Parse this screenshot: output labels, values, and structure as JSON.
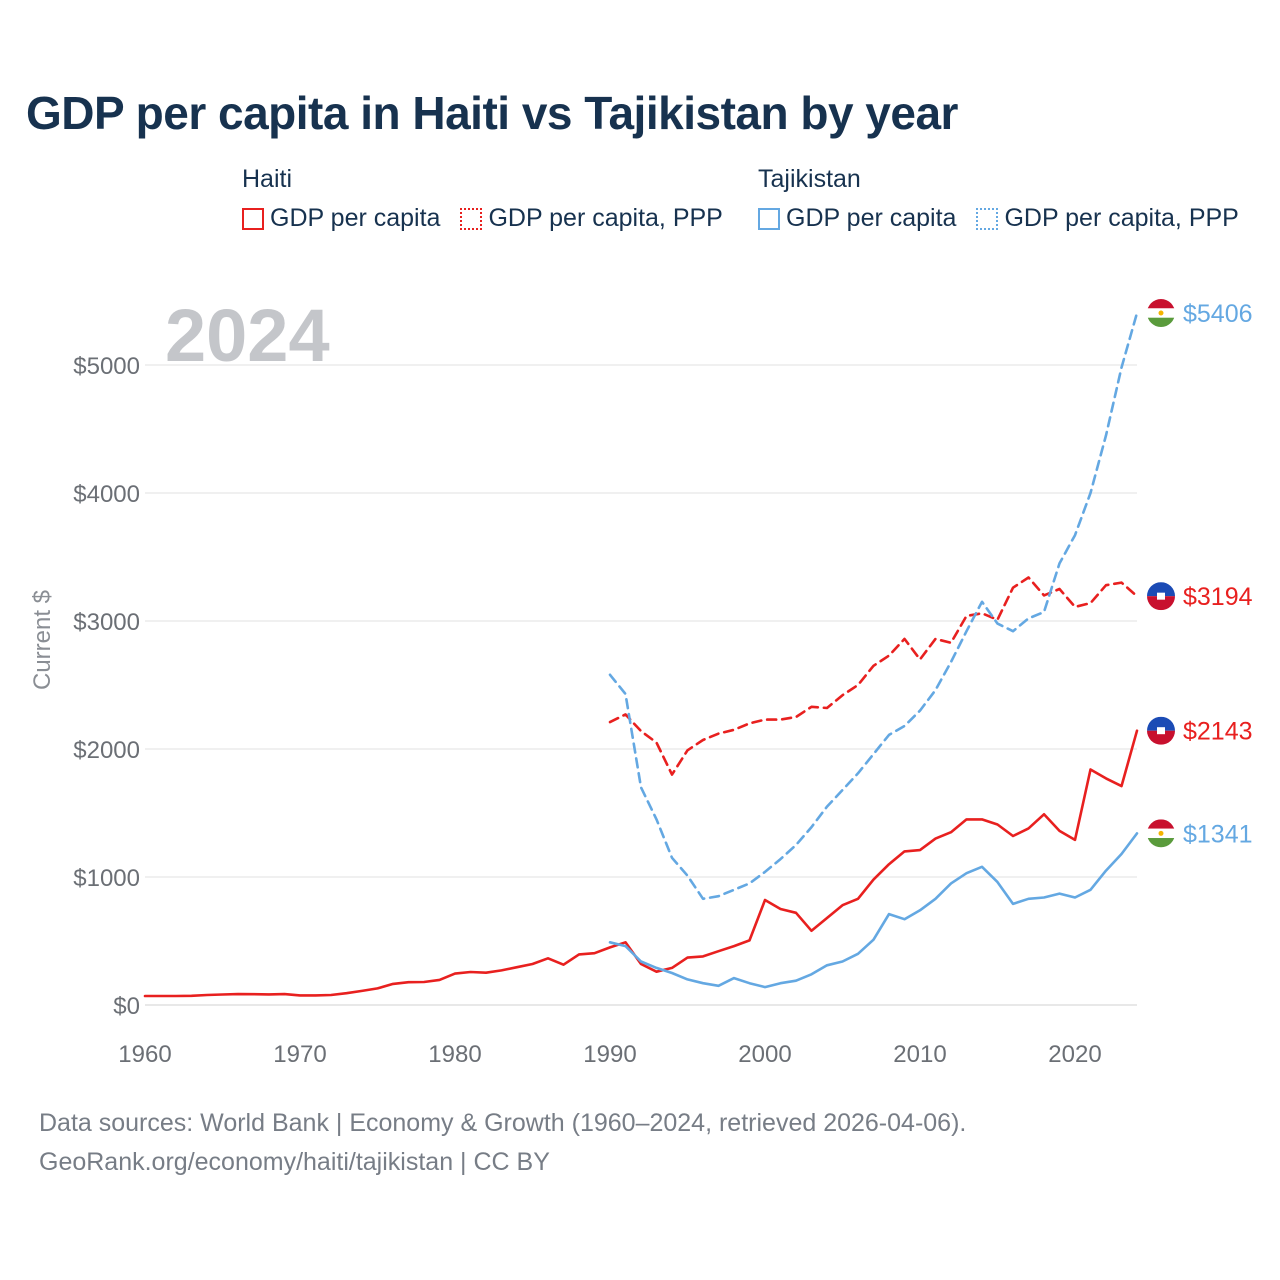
{
  "title": "GDP per capita in Haiti vs Tajikistan by year",
  "colors": {
    "haiti": "#e8201f",
    "tajikistan": "#64a8e2",
    "axis_text": "#6b6f75",
    "title": "#17324f",
    "grid": "#e6e6e6",
    "year_label": "#c4c6ca"
  },
  "legend": [
    {
      "country": "Haiti",
      "color_key": "haiti",
      "items": [
        {
          "label": "GDP per capita",
          "style": "solid"
        },
        {
          "label": "GDP per capita, PPP",
          "style": "dotted"
        }
      ]
    },
    {
      "country": "Tajikistan",
      "color_key": "tajikistan",
      "items": [
        {
          "label": "GDP per capita",
          "style": "solid"
        },
        {
          "label": "GDP per capita, PPP",
          "style": "dotted"
        }
      ]
    }
  ],
  "year_label": "2024",
  "footer": {
    "line1": "Data sources: World Bank | Economy & Growth (1960–2024, retrieved 2026-04-06).",
    "line2": "GeoRank.org/economy/haiti/tajikistan | CC BY"
  },
  "chart_data": {
    "type": "line",
    "title": "GDP per capita in Haiti vs Tajikistan by year",
    "xlabel": "",
    "ylabel": "Current $",
    "xlim": [
      1960,
      2024
    ],
    "ylim": [
      0,
      5500
    ],
    "x_ticks": [
      1960,
      1970,
      1980,
      1990,
      2000,
      2010,
      2020
    ],
    "y_ticks": [
      0,
      1000,
      2000,
      3000,
      4000,
      5000
    ],
    "y_tick_labels": [
      "$0",
      "$1000",
      "$2000",
      "$3000",
      "$4000",
      "$5000"
    ],
    "grid": true,
    "series": [
      {
        "name": "Haiti GDP per capita",
        "country": "Haiti",
        "color_key": "haiti",
        "dash": false,
        "end_label": "$2143",
        "flag": "haiti",
        "x": [
          1960,
          1961,
          1962,
          1963,
          1964,
          1965,
          1966,
          1967,
          1968,
          1969,
          1970,
          1971,
          1972,
          1973,
          1974,
          1975,
          1976,
          1977,
          1978,
          1979,
          1980,
          1981,
          1982,
          1983,
          1984,
          1985,
          1986,
          1987,
          1988,
          1989,
          1990,
          1991,
          1992,
          1993,
          1994,
          1995,
          1996,
          1997,
          1998,
          1999,
          2000,
          2001,
          2002,
          2003,
          2004,
          2005,
          2006,
          2007,
          2008,
          2009,
          2010,
          2011,
          2012,
          2013,
          2014,
          2015,
          2016,
          2017,
          2018,
          2019,
          2020,
          2021,
          2022,
          2023,
          2024
        ],
        "values": [
          70,
          70,
          70,
          72,
          78,
          82,
          85,
          84,
          83,
          85,
          75,
          75,
          78,
          92,
          110,
          130,
          165,
          178,
          180,
          196,
          245,
          258,
          252,
          270,
          295,
          320,
          365,
          315,
          395,
          405,
          450,
          490,
          320,
          260,
          290,
          370,
          380,
          420,
          460,
          505,
          820,
          750,
          720,
          580,
          680,
          780,
          830,
          980,
          1100,
          1200,
          1210,
          1300,
          1350,
          1450,
          1450,
          1410,
          1320,
          1380,
          1490,
          1360,
          1290,
          1840,
          1770,
          1710,
          2143
        ]
      },
      {
        "name": "Haiti GDP per capita, PPP",
        "country": "Haiti",
        "color_key": "haiti",
        "dash": true,
        "end_label": "$3194",
        "flag": "haiti",
        "x": [
          1990,
          1991,
          1992,
          1993,
          1994,
          1995,
          1996,
          1997,
          1998,
          1999,
          2000,
          2001,
          2002,
          2003,
          2004,
          2005,
          2006,
          2007,
          2008,
          2009,
          2010,
          2011,
          2012,
          2013,
          2014,
          2015,
          2016,
          2017,
          2018,
          2019,
          2020,
          2021,
          2022,
          2023,
          2024
        ],
        "values": [
          2210,
          2270,
          2140,
          2050,
          1800,
          1990,
          2070,
          2120,
          2150,
          2200,
          2230,
          2230,
          2250,
          2330,
          2320,
          2420,
          2500,
          2650,
          2730,
          2860,
          2700,
          2860,
          2830,
          3040,
          3060,
          3010,
          3260,
          3340,
          3200,
          3250,
          3110,
          3140,
          3280,
          3300,
          3194
        ]
      },
      {
        "name": "Tajikistan GDP per capita",
        "country": "Tajikistan",
        "color_key": "tajikistan",
        "dash": false,
        "end_label": "$1341",
        "flag": "tajikistan",
        "x": [
          1990,
          1991,
          1992,
          1993,
          1994,
          1995,
          1996,
          1997,
          1998,
          1999,
          2000,
          2001,
          2002,
          2003,
          2004,
          2005,
          2006,
          2007,
          2008,
          2009,
          2010,
          2011,
          2012,
          2013,
          2014,
          2015,
          2016,
          2017,
          2018,
          2019,
          2020,
          2021,
          2022,
          2023,
          2024
        ],
        "values": [
          490,
          460,
          340,
          290,
          250,
          200,
          170,
          150,
          210,
          170,
          140,
          170,
          190,
          240,
          310,
          340,
          400,
          510,
          710,
          670,
          740,
          830,
          950,
          1030,
          1080,
          960,
          790,
          830,
          840,
          870,
          840,
          900,
          1050,
          1180,
          1341
        ]
      },
      {
        "name": "Tajikistan GDP per capita, PPP",
        "country": "Tajikistan",
        "color_key": "tajikistan",
        "dash": true,
        "end_label": "$5406",
        "flag": "tajikistan",
        "x": [
          1990,
          1991,
          1992,
          1993,
          1994,
          1995,
          1996,
          1997,
          1998,
          1999,
          2000,
          2001,
          2002,
          2003,
          2004,
          2005,
          2006,
          2007,
          2008,
          2009,
          2010,
          2011,
          2012,
          2013,
          2014,
          2015,
          2016,
          2017,
          2018,
          2019,
          2020,
          2021,
          2022,
          2023,
          2024
        ],
        "values": [
          2580,
          2430,
          1700,
          1450,
          1150,
          1010,
          830,
          850,
          900,
          950,
          1040,
          1140,
          1250,
          1390,
          1550,
          1680,
          1810,
          1960,
          2110,
          2180,
          2300,
          2460,
          2680,
          2920,
          3150,
          2980,
          2920,
          3020,
          3070,
          3450,
          3670,
          4000,
          4450,
          4980,
          5406
        ]
      }
    ]
  }
}
